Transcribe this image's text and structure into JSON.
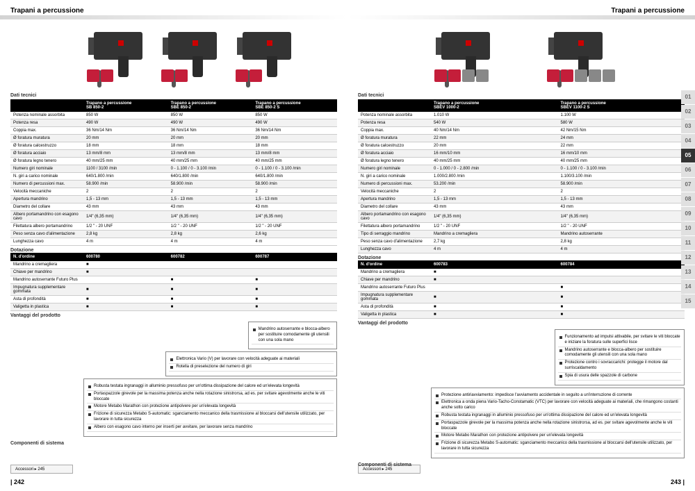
{
  "title": "Trapani a percussione",
  "left": {
    "page_num": "| 242",
    "products": [
      "Trapano a percussione\nSB 850-2",
      "Trapano a percussione\nSBE 850-2",
      "Trapano a percussione\nSBE 850-2 S"
    ],
    "section_tech": "Dati tecnici",
    "specs": [
      [
        "Potenza nominale assorbita",
        "850 W",
        "850 W",
        "850 W"
      ],
      [
        "Potenza resa",
        "490 W",
        "490 W",
        "490 W"
      ],
      [
        "Coppia max.",
        "36 Nm/14 Nm",
        "36 Nm/14 Nm",
        "36 Nm/14 Nm"
      ],
      [
        "Ø foratura muratura",
        "20 mm",
        "20 mm",
        "20 mm"
      ],
      [
        "Ø foratura calcestruzzo",
        "18 mm",
        "18 mm",
        "18 mm"
      ],
      [
        "Ø foratura acciaio",
        "13 mm/8 mm",
        "13 mm/8 mm",
        "13 mm/8 mm"
      ],
      [
        "Ø foratura legno tenero",
        "40 mm/25 mm",
        "40 mm/25 mm",
        "40 mm/25 mm"
      ],
      [
        "Numero giri nominale",
        "1100 / 3100 /min",
        "0 - 1.100 / 0 - 3.100 /min",
        "0 - 1.100 / 0 - 3.100 /min"
      ],
      [
        "N. giri a carico nominale",
        "640/1.800 /min",
        "640/1.800 /min",
        "640/1.800 /min"
      ],
      [
        "Numero di percussioni max.",
        "58.900 /min",
        "58.900 /min",
        "58.900 /min"
      ],
      [
        "Velocità meccaniche",
        "2",
        "2",
        "2"
      ],
      [
        "Apertura mandrino",
        "1,5 - 13 mm",
        "1,5 - 13 mm",
        "1,5 - 13 mm"
      ],
      [
        "Diametro del collare",
        "43 mm",
        "43 mm",
        "43 mm"
      ],
      [
        "Albero portamandrino con esagono cavo",
        "1/4\" (6,35 mm)",
        "1/4\" (6,35 mm)",
        "1/4\" (6,35 mm)"
      ],
      [
        "Filettatura albero portamandrino",
        "1/2 \" - 20 UNF",
        "1/2 \" - 20 UNF",
        "1/2 \" - 20 UNF"
      ],
      [
        "Peso senza cavo d'alimentazione",
        "2,8 kg",
        "2,8 kg",
        "2,6 kg"
      ],
      [
        "Lunghezza cavo",
        "4 m",
        "4 m",
        "4 m"
      ]
    ],
    "section_ord": "Dotazione",
    "order_hdr": [
      "N. d'ordine",
      "600780",
      "600782",
      "600787"
    ],
    "order_rows": [
      [
        "Mandrino a cremagliera",
        "■",
        "",
        ""
      ],
      [
        "Chiave per mandrino",
        "■",
        "",
        ""
      ],
      [
        "Mandrino autoserrante Futuro Plus",
        "",
        "■",
        "■"
      ],
      [
        "Impugnatura supplementare gommata",
        "■",
        "■",
        "■"
      ],
      [
        "Asta di profondità",
        "■",
        "■",
        "■"
      ],
      [
        "Valigetta in plastica",
        "■",
        "■",
        "■"
      ]
    ],
    "section_ben": "Vantaggi del prodotto",
    "box3": [
      "Mandrino autoserrante e blocca-albero per sostituire comodamente gli utensili con una sola mano"
    ],
    "box2": [
      "Elettronica Vario (V) per lavorare con velocità adeguate ai materiali",
      "Rotella di preselezione del numero di giri"
    ],
    "common": [
      "Robusta testata ingranaggi in alluminio pressofuso per un'ottima dissipazione del calore ed un'elevata longevità",
      "Portaspazzole girevole per la massima potenza anche nella rotazione sinistrorsa, ad es. per svitare agevolmente anche le viti bloccate",
      "Motore Metabo Marathon con protezione antipolvere per un'elevata longevità",
      "Frizione di sicurezza Metabo S-automatic: sganciamento meccanico della trasmissione al bloccarsi dell'utensile utilizzato, per lavorare in tutta sicurezza",
      "Albero con esagono cavo interno per inserti per avvitare, per lavorare senza mandrino"
    ],
    "section_comp": "Componenti di sistema",
    "accessori": "Accessori ▸ 245"
  },
  "right": {
    "page_num": "243 |",
    "products": [
      "Trapano a percussione\nSBEV 1000-2",
      "Trapano a percussione\nSBEV 1100-2 S"
    ],
    "specs": [
      [
        "Potenza nominale assorbita",
        "1.010 W",
        "1.100 W"
      ],
      [
        "Potenza resa",
        "540 W",
        "580 W"
      ],
      [
        "Coppia max.",
        "40 Nm/14 Nm",
        "42 Nm/15 Nm"
      ],
      [
        "Ø foratura muratura",
        "22 mm",
        "24 mm"
      ],
      [
        "Ø foratura calcestruzzo",
        "20 mm",
        "22 mm"
      ],
      [
        "Ø foratura acciaio",
        "16 mm/10 mm",
        "16 mm/10 mm"
      ],
      [
        "Ø foratura legno tenero",
        "40 mm/25 mm",
        "40 mm/25 mm"
      ],
      [
        "Numero giri nominale",
        "0 - 1.000 / 0 - 2.800 /min",
        "0 - 1.100 / 0 - 3.100 /min"
      ],
      [
        "N. giri a carico nominale",
        "1.000/2.800 /min",
        "1.100/3.100 /min"
      ],
      [
        "Numero di percussioni max.",
        "53.200 /min",
        "58.900 /min"
      ],
      [
        "Velocità meccaniche",
        "2",
        "2"
      ],
      [
        "Apertura mandrino",
        "1,5 - 13 mm",
        "1,5 - 13 mm"
      ],
      [
        "Diametro del collare",
        "43 mm",
        "43 mm"
      ],
      [
        "Albero portamandrino con esagono cavo",
        "1/4\" (6,35 mm)",
        "1/4\" (6,35 mm)"
      ],
      [
        "Filettatura albero portamandrino",
        "1/2 \" - 20 UNF",
        "1/2 \" - 20 UNF"
      ],
      [
        "Tipo di serraggio mandrino",
        "Mandrino a cremagliera",
        "Mandrino autoserrante"
      ],
      [
        "Peso senza cavo d'alimentazione",
        "2,7 kg",
        "2,8 kg"
      ],
      [
        "Lunghezza cavo",
        "4 m",
        "4 m"
      ]
    ],
    "order_hdr": [
      "N. d'ordine",
      "600783",
      "600784"
    ],
    "order_rows": [
      [
        "Mandrino a cremagliera",
        "■",
        ""
      ],
      [
        "Chiave per mandrino",
        "■",
        ""
      ],
      [
        "Mandrino autoserrante Futuro Plus",
        "",
        "■"
      ],
      [
        "Impugnatura supplementare gommata",
        "■",
        "■"
      ],
      [
        "Asta di profondità",
        "■",
        "■"
      ],
      [
        "Valigetta in plastica",
        "■",
        "■"
      ]
    ],
    "box2": [
      "Funzionamento ad impulsi attivabile, per svitare le viti bloccate e iniziare la foratura sulle superfici lisce",
      "Mandrino autoserrante e blocca-albero per sostituire comodamente gli utensili con una sola mano",
      "Protezione contro i sovraccarichi: protegge il motore dal surriscaldamento",
      "Spia di usura delle spazzole di carbone"
    ],
    "common": [
      "Protezione antiriavviamento: impedisce l'avviamento accidentale in seguito a un'interruzione di corrente",
      "Elettronica a onda piena Vario-Tacho-Constamatic (VTC) per lavorare con velocità adeguate ai materiali, che rimangono costanti anche sotto carico",
      "Robusta testata ingranaggi in alluminio pressofuso per un'ottima dissipazione del calore ed un'elevata longevità",
      "Portaspazzole girevole per la massima potenza anche nella rotazione sinistrorsa, ad es. per svitare agevolmente anche le viti bloccate",
      "Motore Metabo Marathon con protezione antipolvere per un'elevata longevità",
      "Frizione di sicurezza Metabo S-automatic: sganciamento meccanico della trasmissione al bloccarsi dell'utensile utilizzato, per lavorare in tutta sicurezza"
    ],
    "side_nums": [
      "01",
      "02",
      "03",
      "04",
      "05",
      "06",
      "07",
      "08",
      "09",
      "10",
      "11",
      "12",
      "13",
      "14",
      "15"
    ],
    "active_num": "05"
  }
}
